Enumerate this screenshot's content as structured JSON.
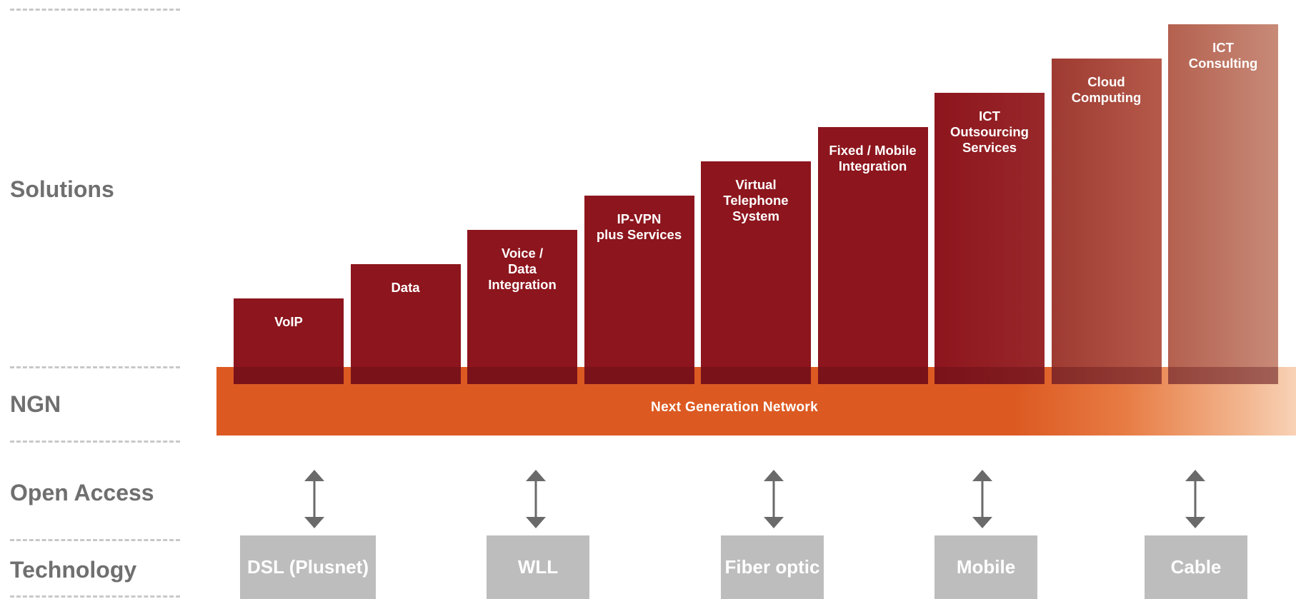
{
  "rows": {
    "solutions": "Solutions",
    "ngn": "NGN",
    "open_access": "Open Access",
    "technology": "Technology"
  },
  "ngn_band": {
    "label": "Next Generation Network"
  },
  "solution_steps": [
    {
      "label": "VoIP",
      "step": 1,
      "color": "#8d151d"
    },
    {
      "label": "Data",
      "step": 2,
      "color": "#8d151d"
    },
    {
      "label": "Voice /\nData\nIntegration",
      "step": 3,
      "color": "#8d151d"
    },
    {
      "label": "IP-VPN\nplus Services",
      "step": 4,
      "color": "#8d151d"
    },
    {
      "label": "Virtual\nTelephone\nSystem",
      "step": 5,
      "color": "#8d151d"
    },
    {
      "label": "Fixed / Mobile\nIntegration",
      "step": 6,
      "color": "#8d151d"
    },
    {
      "label": "ICT\nOutsourcing\nServices",
      "step": 7,
      "color": "#8d151d"
    },
    {
      "label": "Cloud\nComputing",
      "step": 8,
      "color": "#a84a3c"
    },
    {
      "label": "ICT\nConsulting",
      "step": 9,
      "color": "#c27a66"
    }
  ],
  "technologies": [
    "DSL (Plusnet)",
    "WLL",
    "Fiber optic",
    "Mobile",
    "Cable"
  ],
  "colors": {
    "bar_dark_red": "#8d151d",
    "ngn_orange": "#dc5a22",
    "tech_gray": "#bdbdbd",
    "label_gray": "#6f6f6f",
    "arrow_gray": "#6a6a6a"
  },
  "icons": {
    "open_access_connector": "double-arrow-vertical"
  }
}
